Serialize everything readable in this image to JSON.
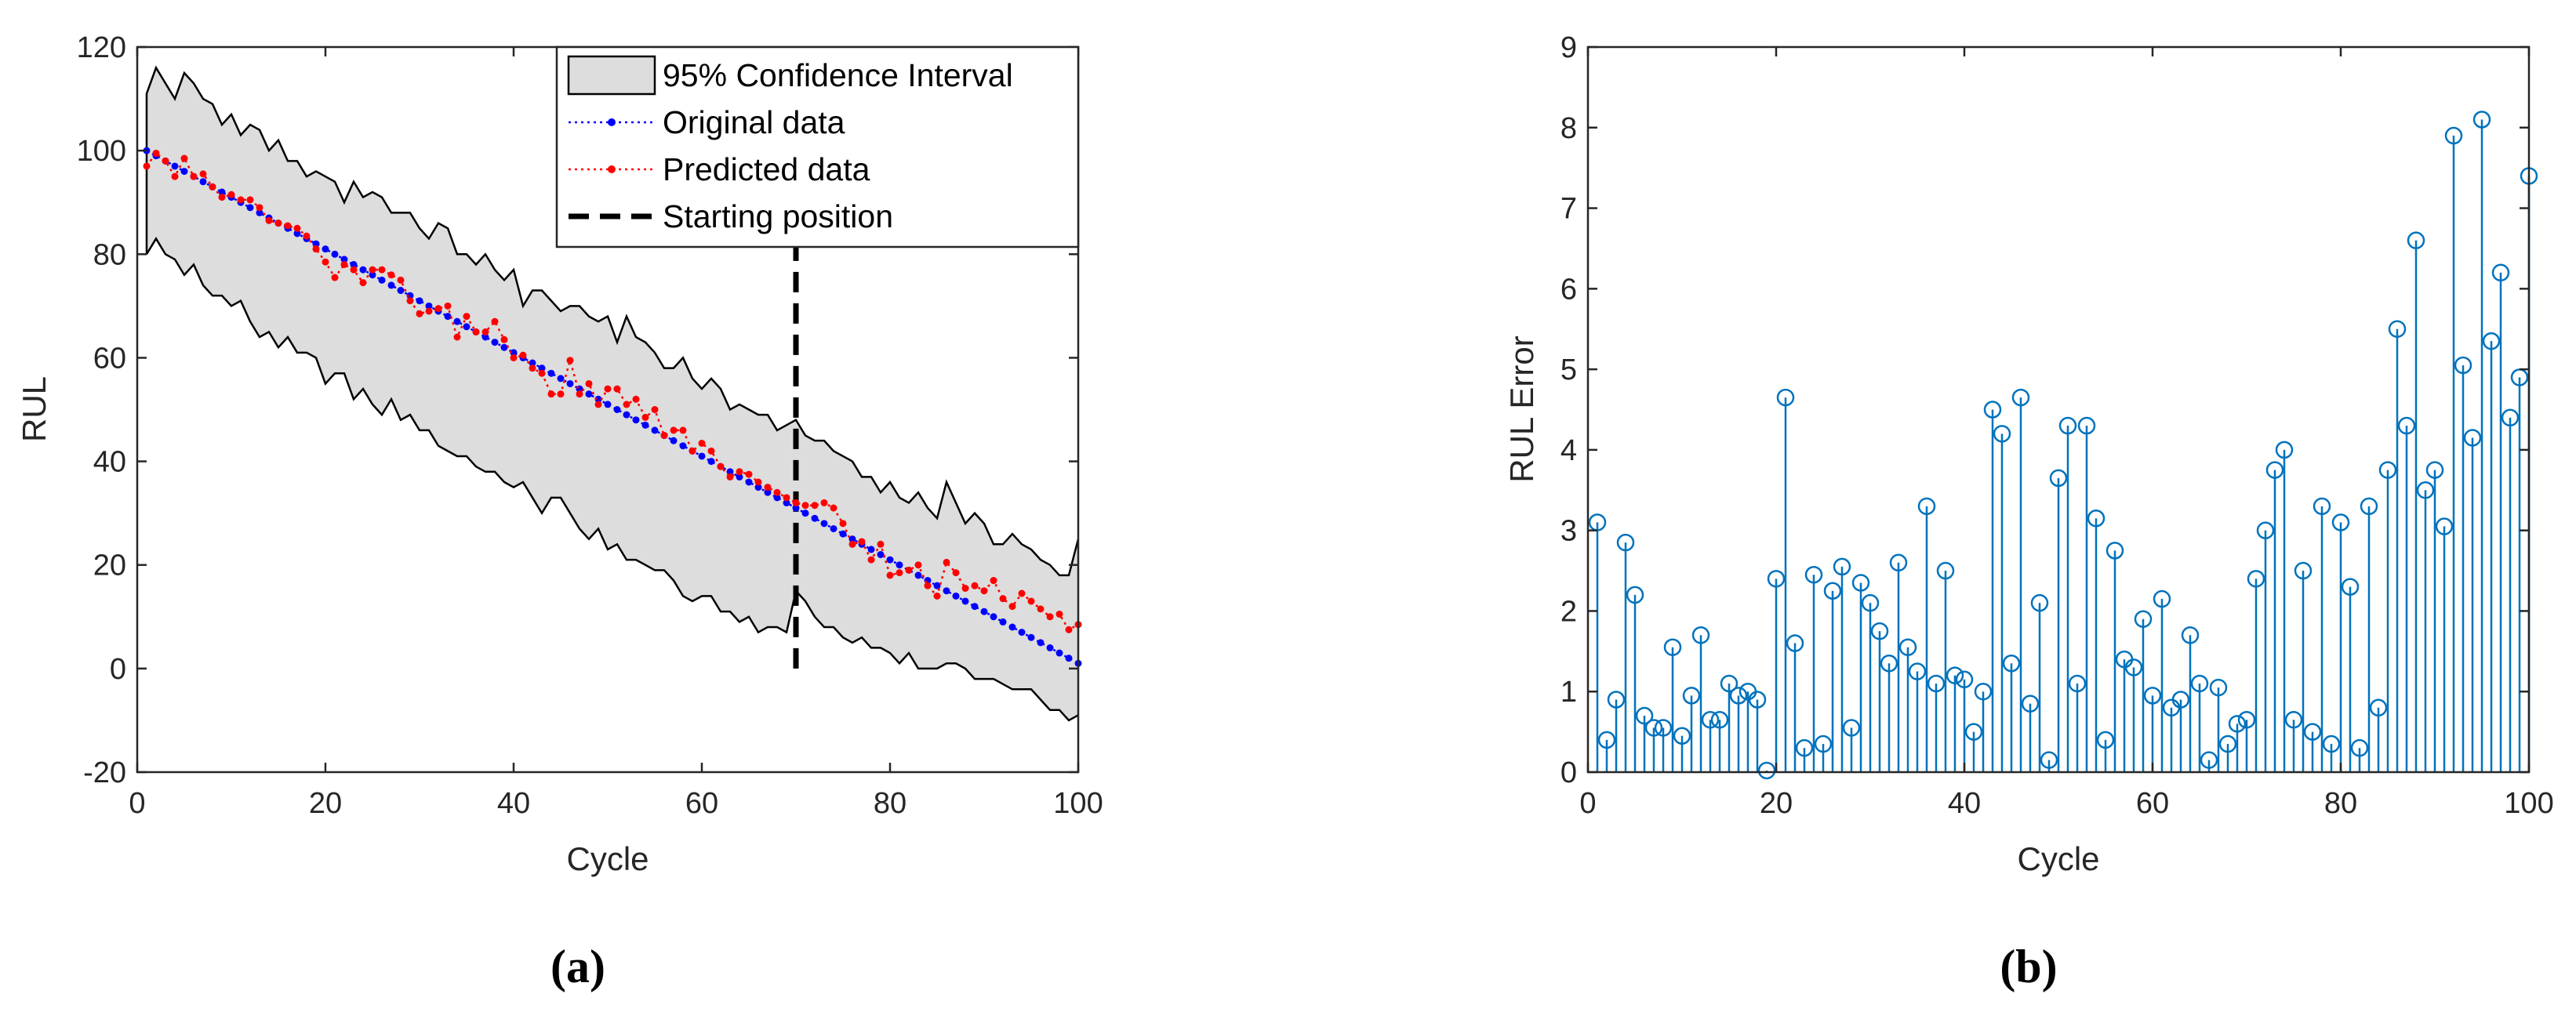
{
  "colors": {
    "ci_fill": "#dddddd",
    "original": "#0000ff",
    "predicted": "#ff0000",
    "stem": "#0072bd",
    "start_line": "#000000"
  },
  "chart_data": [
    {
      "id": "a",
      "type": "line",
      "panel_label": "(a)",
      "xlabel": "Cycle",
      "ylabel": "RUL",
      "xlim": [
        0,
        100
      ],
      "ylim": [
        -20,
        120
      ],
      "xticks": [
        0,
        20,
        40,
        60,
        80,
        100
      ],
      "yticks": [
        -20,
        0,
        20,
        40,
        60,
        80,
        100,
        120
      ],
      "legend_position": "top-right",
      "legend": [
        "95% Confidence Interval",
        "Original data",
        "Predicted data",
        "Starting position"
      ],
      "starting_position": {
        "x": 70,
        "y_range": [
          0,
          83
        ]
      },
      "x": [
        1,
        2,
        3,
        4,
        5,
        6,
        7,
        8,
        9,
        10,
        11,
        12,
        13,
        14,
        15,
        16,
        17,
        18,
        19,
        20,
        21,
        22,
        23,
        24,
        25,
        26,
        27,
        28,
        29,
        30,
        31,
        32,
        33,
        34,
        35,
        36,
        37,
        38,
        39,
        40,
        41,
        42,
        43,
        44,
        45,
        46,
        47,
        48,
        49,
        50,
        51,
        52,
        53,
        54,
        55,
        56,
        57,
        58,
        59,
        60,
        61,
        62,
        63,
        64,
        65,
        66,
        67,
        68,
        69,
        70,
        71,
        72,
        73,
        74,
        75,
        76,
        77,
        78,
        79,
        80,
        81,
        82,
        83,
        84,
        85,
        86,
        87,
        88,
        89,
        90,
        91,
        92,
        93,
        94,
        95,
        96,
        97,
        98,
        99,
        100
      ],
      "series": [
        {
          "name": "Original data",
          "values": [
            100,
            99,
            98,
            97,
            96,
            95,
            94,
            93,
            92,
            91,
            90,
            89,
            88,
            87,
            86,
            85,
            84,
            83,
            82,
            81,
            80,
            79,
            78,
            77,
            76,
            75,
            74,
            73,
            72,
            71,
            70,
            69,
            68,
            67,
            66,
            65,
            64,
            63,
            62,
            61,
            60,
            59,
            58,
            57,
            56,
            55,
            54,
            53,
            52,
            51,
            50,
            49,
            48,
            47,
            46,
            45,
            44,
            43,
            42,
            41,
            40,
            39,
            38,
            37,
            36,
            35,
            34,
            33,
            32,
            31,
            30,
            29,
            28,
            27,
            26,
            25,
            24,
            23,
            22,
            21,
            20,
            19,
            18,
            17,
            16,
            15,
            14,
            13,
            12,
            11,
            10,
            9,
            8,
            7,
            6,
            5,
            4,
            3,
            2,
            1
          ]
        },
        {
          "name": "Predicted data",
          "values": [
            97,
            99.5,
            98,
            95,
            98.5,
            95,
            95.5,
            93,
            91,
            91.5,
            90.5,
            90.5,
            89,
            86.5,
            86,
            85.5,
            85,
            83.5,
            81,
            78.5,
            75.5,
            78,
            77,
            74.5,
            77,
            77,
            76,
            75,
            71,
            68.5,
            69,
            69.5,
            70,
            64,
            68,
            65,
            65,
            67,
            63.5,
            60,
            60.5,
            58,
            57,
            53,
            53,
            59.5,
            53,
            55,
            51,
            54,
            54,
            51,
            52,
            48.5,
            50,
            45,
            46,
            46,
            42,
            43.5,
            42,
            39,
            37,
            38,
            37.5,
            36,
            35,
            34,
            33,
            32,
            31.5,
            31.5,
            32,
            31,
            28,
            24,
            24.5,
            21,
            24,
            18,
            18.5,
            19,
            20,
            16,
            14,
            20.5,
            18.5,
            15.5,
            16,
            15,
            17,
            13.5,
            12,
            14.5,
            13,
            11.5,
            10,
            10.5,
            7.5,
            8.5
          ]
        },
        {
          "name": "CI upper",
          "values": [
            111,
            116,
            113,
            110,
            115,
            113,
            110,
            109,
            105,
            107,
            103,
            105,
            104,
            100,
            102,
            98,
            98,
            95,
            96,
            95,
            94,
            90,
            94,
            91,
            92,
            91,
            88,
            88,
            88,
            85,
            83,
            86,
            85,
            80,
            80,
            78,
            80,
            77,
            75,
            77,
            70,
            73,
            73,
            71,
            69,
            70,
            70,
            68,
            67,
            68,
            63,
            68,
            64,
            63,
            61,
            58,
            58,
            60,
            56,
            54,
            56,
            54,
            50,
            51,
            50,
            49,
            49,
            46,
            47,
            48,
            45,
            44,
            44,
            42,
            41,
            40,
            37,
            37,
            34,
            36,
            33,
            32,
            34,
            31,
            29,
            36,
            32,
            28,
            30,
            28,
            24,
            24,
            26,
            24,
            23,
            21,
            20,
            18,
            18,
            25
          ]
        },
        {
          "name": "CI lower",
          "values": [
            80,
            83,
            80,
            79,
            76,
            78,
            74,
            72,
            72,
            70,
            71,
            67,
            64,
            65,
            62,
            64,
            61,
            61,
            60,
            55,
            57,
            57,
            52,
            54,
            51,
            49,
            52,
            48,
            49,
            46,
            46,
            43,
            42,
            41,
            41,
            39,
            38,
            38,
            36,
            35,
            36,
            33,
            30,
            33,
            33,
            30,
            27,
            25,
            27,
            23,
            24,
            21,
            21,
            20,
            19,
            19,
            17,
            14,
            13,
            14,
            14,
            11,
            11,
            9,
            10,
            7,
            8,
            8,
            7,
            15,
            13,
            10,
            8,
            8,
            6,
            5,
            6,
            4,
            4,
            3,
            1,
            3,
            0,
            0,
            0,
            1,
            1,
            0,
            -2,
            -2,
            -2,
            -3,
            -4,
            -4,
            -4,
            -6,
            -8,
            -8,
            -10,
            -9
          ]
        }
      ]
    },
    {
      "id": "b",
      "type": "stem",
      "panel_label": "(b)",
      "xlabel": "Cycle",
      "ylabel": "RUL Error",
      "xlim": [
        0,
        100
      ],
      "ylim": [
        0,
        9
      ],
      "xticks": [
        0,
        20,
        40,
        60,
        80,
        100
      ],
      "yticks": [
        0,
        1,
        2,
        3,
        4,
        5,
        6,
        7,
        8,
        9
      ],
      "x": [
        1,
        2,
        3,
        4,
        5,
        6,
        7,
        8,
        9,
        10,
        11,
        12,
        13,
        14,
        15,
        16,
        17,
        18,
        19,
        20,
        21,
        22,
        23,
        24,
        25,
        26,
        27,
        28,
        29,
        30,
        31,
        32,
        33,
        34,
        35,
        36,
        37,
        38,
        39,
        40,
        41,
        42,
        43,
        44,
        45,
        46,
        47,
        48,
        49,
        50,
        51,
        52,
        53,
        54,
        55,
        56,
        57,
        58,
        59,
        60,
        61,
        62,
        63,
        64,
        65,
        66,
        67,
        68,
        69,
        70,
        71,
        72,
        73,
        74,
        75,
        76,
        77,
        78,
        79,
        80,
        81,
        82,
        83,
        84,
        85,
        86,
        87,
        88,
        89,
        90,
        91,
        92,
        93,
        94,
        95,
        96,
        97,
        98,
        99,
        100
      ],
      "values": [
        3.1,
        0.4,
        0.9,
        2.85,
        2.2,
        0.7,
        0.55,
        0.55,
        1.55,
        0.45,
        0.95,
        1.7,
        0.65,
        0.65,
        1.1,
        0.95,
        1.0,
        0.9,
        0.02,
        2.4,
        4.65,
        1.6,
        0.3,
        2.45,
        0.35,
        2.25,
        2.55,
        0.55,
        2.35,
        2.1,
        1.75,
        1.35,
        2.6,
        1.55,
        1.25,
        3.3,
        1.1,
        2.5,
        1.2,
        1.15,
        0.5,
        1.0,
        4.5,
        4.2,
        1.35,
        4.65,
        0.85,
        2.1,
        0.15,
        3.65,
        4.3,
        1.1,
        4.3,
        3.15,
        0.4,
        2.75,
        1.4,
        1.3,
        1.9,
        0.95,
        2.15,
        0.8,
        0.9,
        1.7,
        1.1,
        0.15,
        1.05,
        0.35,
        0.6,
        0.65,
        2.4,
        3.0,
        3.75,
        4.0,
        0.65,
        2.5,
        0.5,
        3.3,
        0.35,
        3.1,
        2.3,
        0.3,
        3.3,
        0.8,
        3.75,
        5.5,
        4.3,
        6.6,
        3.5,
        3.75,
        3.05,
        7.9,
        5.05,
        4.15,
        8.1,
        5.35,
        6.2,
        4.4,
        4.9,
        7.4
      ]
    }
  ]
}
